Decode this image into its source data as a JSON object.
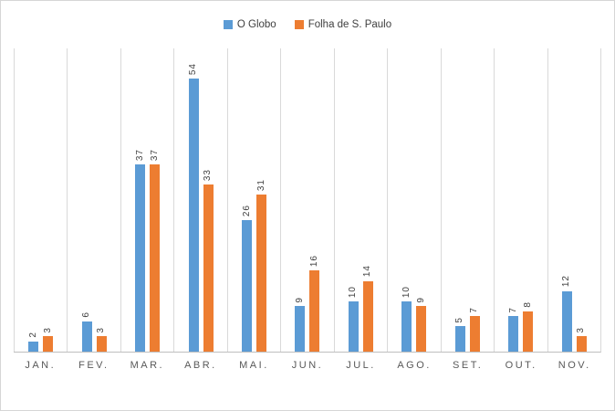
{
  "chart_data": {
    "type": "bar",
    "title": "",
    "xlabel": "",
    "ylabel": "",
    "ylim": [
      0,
      60
    ],
    "grid": "vertical-category-separators",
    "legend_position": "top-center",
    "data_labels": "rotated-90-above-bars",
    "axis_line_color": "#bfbfbf",
    "gridline_color": "#d9d9d9",
    "categories": [
      "JAN.",
      "FEV.",
      "MAR.",
      "ABR.",
      "MAI.",
      "JUN.",
      "JUL.",
      "AGO.",
      "SET.",
      "OUT.",
      "NOV."
    ],
    "series": [
      {
        "name": "O Globo",
        "color": "#5b9bd5",
        "values": [
          2,
          6,
          37,
          54,
          26,
          9,
          10,
          10,
          5,
          7,
          12
        ]
      },
      {
        "name": "Folha de S. Paulo",
        "color": "#ed7d31",
        "values": [
          3,
          3,
          37,
          33,
          31,
          16,
          14,
          9,
          7,
          8,
          3
        ]
      }
    ]
  }
}
